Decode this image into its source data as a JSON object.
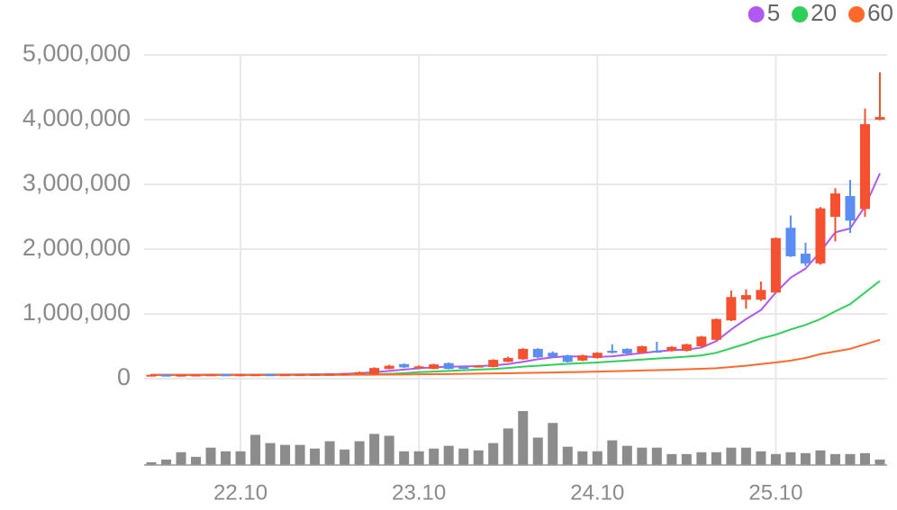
{
  "chart_data": {
    "type": "candlestick",
    "categories": [
      null,
      null,
      null,
      null,
      null,
      null,
      "22.10",
      null,
      null,
      null,
      null,
      null,
      null,
      null,
      null,
      null,
      null,
      null,
      "23.10",
      null,
      null,
      null,
      null,
      null,
      null,
      null,
      null,
      null,
      null,
      null,
      "24.10",
      null,
      null,
      null,
      null,
      null,
      null,
      null,
      null,
      null,
      null,
      null,
      "25.10",
      null,
      null,
      null,
      null,
      null,
      null,
      null
    ],
    "open": [
      55000,
      60000,
      58000,
      60000,
      62000,
      65000,
      63000,
      65000,
      66000,
      64000,
      66000,
      68000,
      70000,
      74000,
      80000,
      70000,
      150000,
      225000,
      170000,
      150000,
      240000,
      180000,
      180000,
      180000,
      260000,
      300000,
      460000,
      400000,
      360000,
      280000,
      320000,
      430000,
      460000,
      400000,
      430000,
      430000,
      430000,
      500000,
      600000,
      900000,
      1220000,
      1220000,
      1330000,
      2330000,
      1930000,
      1780000,
      2500000,
      2820000,
      2620000,
      4000000
    ],
    "high": [
      70000,
      68000,
      68000,
      70000,
      72000,
      72000,
      72000,
      74000,
      74000,
      74000,
      76000,
      78000,
      82000,
      88000,
      110000,
      175000,
      215000,
      235000,
      205000,
      230000,
      250000,
      190000,
      210000,
      300000,
      340000,
      470000,
      470000,
      420000,
      370000,
      370000,
      410000,
      530000,
      470000,
      510000,
      570000,
      500000,
      540000,
      660000,
      930000,
      1360000,
      1380000,
      1500000,
      2180000,
      2520000,
      2100000,
      2650000,
      2940000,
      3070000,
      4170000,
      4730000
    ],
    "low": [
      50000,
      52000,
      52000,
      54000,
      56000,
      56000,
      57000,
      58000,
      58000,
      58000,
      60000,
      62000,
      65000,
      70000,
      75000,
      65000,
      145000,
      165000,
      160000,
      145000,
      145000,
      150000,
      175000,
      175000,
      255000,
      290000,
      320000,
      330000,
      250000,
      270000,
      310000,
      390000,
      380000,
      390000,
      400000,
      420000,
      420000,
      490000,
      590000,
      890000,
      1080000,
      1200000,
      1320000,
      1880000,
      1740000,
      1760000,
      2120000,
      2250000,
      2500000,
      3990000
    ],
    "close": [
      60000,
      58000,
      60000,
      62000,
      65000,
      63000,
      65000,
      66000,
      64000,
      66000,
      68000,
      70000,
      74000,
      80000,
      100000,
      165000,
      200000,
      175000,
      190000,
      220000,
      150000,
      160000,
      200000,
      290000,
      320000,
      460000,
      330000,
      340000,
      260000,
      360000,
      400000,
      400000,
      390000,
      500000,
      410000,
      490000,
      530000,
      650000,
      920000,
      1260000,
      1290000,
      1370000,
      2170000,
      1890000,
      1780000,
      2630000,
      2860000,
      2440000,
      3930000,
      4040000
    ],
    "up_color": "#f5502f",
    "down_color": "#5b8ef2",
    "series": [
      {
        "name": "5",
        "color": "#b157f2",
        "values": [
          60000,
          60000,
          60000,
          60000,
          62000,
          62000,
          63000,
          63000,
          64000,
          65000,
          66000,
          68000,
          70000,
          75000,
          85000,
          100000,
          120000,
          140000,
          160000,
          175000,
          185000,
          190000,
          195000,
          205000,
          225000,
          260000,
          300000,
          330000,
          345000,
          340000,
          335000,
          345000,
          370000,
          395000,
          420000,
          440000,
          450000,
          480000,
          580000,
          760000,
          920000,
          1060000,
          1330000,
          1560000,
          1700000,
          1960000,
          2260000,
          2320000,
          2660000,
          3170000
        ]
      },
      {
        "name": "20",
        "color": "#2fd05a",
        "values": [
          58000,
          58000,
          58000,
          58000,
          58000,
          59000,
          59000,
          60000,
          60000,
          61000,
          61000,
          62000,
          63000,
          64000,
          66000,
          70000,
          75000,
          85000,
          100000,
          110000,
          120000,
          130000,
          140000,
          150000,
          165000,
          185000,
          200000,
          215000,
          230000,
          240000,
          250000,
          265000,
          280000,
          295000,
          310000,
          325000,
          340000,
          360000,
          400000,
          470000,
          540000,
          620000,
          680000,
          760000,
          830000,
          920000,
          1040000,
          1150000,
          1330000,
          1510000
        ]
      },
      {
        "name": "60",
        "color": "#ff6a2c",
        "values": [
          55000,
          55000,
          55000,
          55000,
          55000,
          55000,
          56000,
          56000,
          56000,
          57000,
          57000,
          58000,
          58000,
          59000,
          60000,
          61000,
          63000,
          65000,
          67000,
          70000,
          72000,
          75000,
          78000,
          81000,
          84000,
          88000,
          92000,
          96000,
          100000,
          105000,
          110000,
          115000,
          120000,
          126000,
          132000,
          138000,
          145000,
          152000,
          162000,
          180000,
          200000,
          225000,
          250000,
          280000,
          320000,
          380000,
          420000,
          460000,
          530000,
          600000
        ]
      }
    ],
    "volume": {
      "color": "#8c8c8c",
      "values": [
        3,
        6,
        14,
        9,
        19,
        15,
        15,
        33,
        24,
        22,
        22,
        18,
        26,
        17,
        26,
        34,
        32,
        15,
        15,
        18,
        21,
        18,
        16,
        24,
        40,
        59,
        30,
        46,
        20,
        15,
        15,
        27,
        21,
        19,
        19,
        12,
        12,
        14,
        14,
        19,
        19,
        15,
        12,
        14,
        13,
        16,
        12,
        12,
        13,
        6
      ]
    },
    "ylim": [
      0,
      5000000
    ],
    "yticks": [
      0,
      {
        "value": 1000000,
        "label": "1,000,000"
      },
      {
        "value": 2000000,
        "label": "2,000,000"
      },
      {
        "value": 3000000,
        "label": "3,000,000"
      },
      {
        "value": 4000000,
        "label": "4,000,000"
      },
      {
        "value": 5000000,
        "label": "5,000,000"
      }
    ],
    "grid": true
  }
}
